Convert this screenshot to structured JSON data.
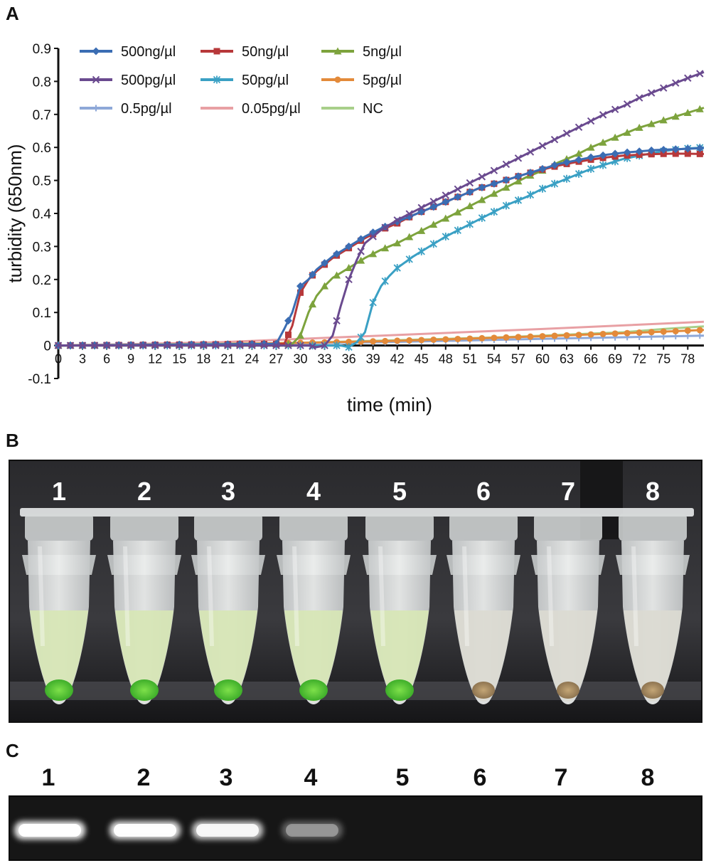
{
  "panels": {
    "a": "A",
    "b": "B",
    "c": "C"
  },
  "chart_data": {
    "type": "line",
    "title": "",
    "xlabel": "time (min)",
    "ylabel": "turbidity (650nm)",
    "xlim": [
      0,
      80
    ],
    "ylim": [
      -0.1,
      0.9
    ],
    "xticks": [
      0,
      3,
      6,
      9,
      12,
      15,
      18,
      21,
      24,
      27,
      30,
      33,
      36,
      39,
      42,
      45,
      48,
      51,
      54,
      57,
      60,
      63,
      66,
      69,
      72,
      75,
      78
    ],
    "yticks": [
      -0.1,
      0,
      0.1,
      0.2,
      0.3,
      0.4,
      0.5,
      0.6,
      0.7,
      0.8,
      0.9
    ],
    "ytick_labels": [
      "-0.1",
      "0",
      "0.1",
      "0.2",
      "0.3",
      "0.4",
      "0.5",
      "0.6",
      "0.7",
      "0.8",
      "0.9"
    ],
    "legend_position": "top-left",
    "series": [
      {
        "name": "500ng/µl",
        "color": "#3b6db3",
        "marker": "diamond",
        "points": [
          [
            0,
            0
          ],
          [
            27,
            0.005
          ],
          [
            28,
            0.05
          ],
          [
            29,
            0.1
          ],
          [
            30,
            0.18
          ],
          [
            31,
            0.2
          ],
          [
            32,
            0.23
          ],
          [
            33,
            0.25
          ],
          [
            34,
            0.27
          ],
          [
            35,
            0.285
          ],
          [
            36,
            0.3
          ],
          [
            38,
            0.33
          ],
          [
            40,
            0.355
          ],
          [
            42,
            0.375
          ],
          [
            44,
            0.395
          ],
          [
            46,
            0.415
          ],
          [
            48,
            0.435
          ],
          [
            50,
            0.455
          ],
          [
            52,
            0.475
          ],
          [
            54,
            0.49
          ],
          [
            56,
            0.505
          ],
          [
            58,
            0.52
          ],
          [
            60,
            0.535
          ],
          [
            62,
            0.55
          ],
          [
            64,
            0.56
          ],
          [
            66,
            0.57
          ],
          [
            68,
            0.578
          ],
          [
            70,
            0.584
          ],
          [
            72,
            0.588
          ],
          [
            74,
            0.592
          ],
          [
            76,
            0.594
          ],
          [
            78,
            0.596
          ],
          [
            80,
            0.598
          ]
        ]
      },
      {
        "name": "50ng/µl",
        "color": "#b7383a",
        "marker": "square",
        "points": [
          [
            0,
            0
          ],
          [
            28,
            0.005
          ],
          [
            29,
            0.06
          ],
          [
            30,
            0.16
          ],
          [
            31,
            0.2
          ],
          [
            32,
            0.225
          ],
          [
            33,
            0.245
          ],
          [
            34,
            0.265
          ],
          [
            35,
            0.28
          ],
          [
            36,
            0.295
          ],
          [
            38,
            0.325
          ],
          [
            40,
            0.35
          ],
          [
            42,
            0.37
          ],
          [
            44,
            0.395
          ],
          [
            46,
            0.415
          ],
          [
            48,
            0.435
          ],
          [
            50,
            0.455
          ],
          [
            52,
            0.475
          ],
          [
            54,
            0.49
          ],
          [
            56,
            0.505
          ],
          [
            58,
            0.52
          ],
          [
            60,
            0.533
          ],
          [
            62,
            0.545
          ],
          [
            64,
            0.555
          ],
          [
            66,
            0.563
          ],
          [
            68,
            0.57
          ],
          [
            70,
            0.575
          ],
          [
            72,
            0.578
          ],
          [
            74,
            0.58
          ],
          [
            76,
            0.581
          ],
          [
            78,
            0.581
          ],
          [
            80,
            0.58
          ]
        ]
      },
      {
        "name": "5ng/µl",
        "color": "#7da33d",
        "marker": "triangle",
        "points": [
          [
            0,
            0
          ],
          [
            29,
            0.005
          ],
          [
            30,
            0.03
          ],
          [
            31,
            0.1
          ],
          [
            32,
            0.15
          ],
          [
            33,
            0.18
          ],
          [
            34,
            0.205
          ],
          [
            35,
            0.22
          ],
          [
            36,
            0.235
          ],
          [
            38,
            0.265
          ],
          [
            40,
            0.29
          ],
          [
            42,
            0.31
          ],
          [
            44,
            0.335
          ],
          [
            46,
            0.36
          ],
          [
            48,
            0.385
          ],
          [
            50,
            0.41
          ],
          [
            52,
            0.435
          ],
          [
            54,
            0.46
          ],
          [
            56,
            0.485
          ],
          [
            58,
            0.51
          ],
          [
            60,
            0.53
          ],
          [
            62,
            0.555
          ],
          [
            64,
            0.575
          ],
          [
            66,
            0.6
          ],
          [
            68,
            0.62
          ],
          [
            70,
            0.64
          ],
          [
            72,
            0.66
          ],
          [
            74,
            0.675
          ],
          [
            76,
            0.69
          ],
          [
            78,
            0.705
          ],
          [
            80,
            0.72
          ]
        ]
      },
      {
        "name": "500pg/µl",
        "color": "#6a4a8f",
        "marker": "x",
        "points": [
          [
            0,
            0
          ],
          [
            31,
            0.0
          ],
          [
            32,
            -0.005
          ],
          [
            33,
            0.0
          ],
          [
            34,
            0.03
          ],
          [
            35,
            0.12
          ],
          [
            36,
            0.2
          ],
          [
            37,
            0.26
          ],
          [
            38,
            0.31
          ],
          [
            40,
            0.35
          ],
          [
            42,
            0.38
          ],
          [
            44,
            0.405
          ],
          [
            46,
            0.43
          ],
          [
            48,
            0.455
          ],
          [
            50,
            0.48
          ],
          [
            52,
            0.505
          ],
          [
            54,
            0.53
          ],
          [
            56,
            0.555
          ],
          [
            58,
            0.58
          ],
          [
            60,
            0.605
          ],
          [
            62,
            0.63
          ],
          [
            64,
            0.655
          ],
          [
            66,
            0.68
          ],
          [
            68,
            0.705
          ],
          [
            70,
            0.725
          ],
          [
            72,
            0.75
          ],
          [
            74,
            0.77
          ],
          [
            76,
            0.79
          ],
          [
            78,
            0.81
          ],
          [
            80,
            0.828
          ]
        ]
      },
      {
        "name": "50pg/µl",
        "color": "#3aa0c4",
        "marker": "star",
        "points": [
          [
            0,
            0
          ],
          [
            35,
            0.0
          ],
          [
            36,
            -0.005
          ],
          [
            37,
            0.01
          ],
          [
            38,
            0.04
          ],
          [
            39,
            0.13
          ],
          [
            40,
            0.18
          ],
          [
            41,
            0.21
          ],
          [
            42,
            0.235
          ],
          [
            44,
            0.27
          ],
          [
            46,
            0.3
          ],
          [
            48,
            0.33
          ],
          [
            50,
            0.355
          ],
          [
            52,
            0.38
          ],
          [
            54,
            0.405
          ],
          [
            56,
            0.43
          ],
          [
            58,
            0.45
          ],
          [
            60,
            0.475
          ],
          [
            62,
            0.495
          ],
          [
            64,
            0.515
          ],
          [
            66,
            0.535
          ],
          [
            68,
            0.55
          ],
          [
            70,
            0.565
          ],
          [
            72,
            0.575
          ],
          [
            74,
            0.585
          ],
          [
            76,
            0.592
          ],
          [
            78,
            0.597
          ],
          [
            80,
            0.6
          ]
        ]
      },
      {
        "name": "5pg/µl",
        "color": "#e38a3a",
        "marker": "circle",
        "points": [
          [
            0,
            0
          ],
          [
            10,
            0.002
          ],
          [
            20,
            0.004
          ],
          [
            30,
            0.008
          ],
          [
            40,
            0.013
          ],
          [
            50,
            0.02
          ],
          [
            60,
            0.028
          ],
          [
            70,
            0.037
          ],
          [
            75,
            0.042
          ],
          [
            78,
            0.045
          ],
          [
            80,
            0.047
          ]
        ]
      },
      {
        "name": "0.5pg/µl",
        "color": "#8ea8d8",
        "marker": "plus",
        "points": [
          [
            0,
            0
          ],
          [
            20,
            0.003
          ],
          [
            40,
            0.01
          ],
          [
            60,
            0.02
          ],
          [
            70,
            0.025
          ],
          [
            80,
            0.03
          ]
        ]
      },
      {
        "name": "0.05pg/µl",
        "color": "#e8a0a4",
        "marker": "none",
        "points": [
          [
            0,
            0
          ],
          [
            20,
            0.01
          ],
          [
            40,
            0.03
          ],
          [
            60,
            0.05
          ],
          [
            80,
            0.072
          ]
        ]
      },
      {
        "name": "NC",
        "color": "#a8cf8a",
        "marker": "none",
        "points": [
          [
            0,
            0
          ],
          [
            30,
            0.008
          ],
          [
            55,
            0.025
          ],
          [
            60,
            0.03
          ],
          [
            70,
            0.04
          ],
          [
            75,
            0.05
          ],
          [
            80,
            0.058
          ]
        ]
      }
    ]
  },
  "photo": {
    "lanes": [
      "1",
      "2",
      "3",
      "4",
      "5",
      "6",
      "7",
      "8"
    ],
    "colors": {
      "green": "#5fce3c",
      "beige": "#b59a6a"
    }
  },
  "gel": {
    "lanes": [
      "1",
      "2",
      "3",
      "4",
      "5",
      "6",
      "7",
      "8"
    ],
    "band_intensity": [
      1.0,
      0.95,
      0.85,
      0.35,
      0,
      0,
      0,
      0
    ]
  }
}
